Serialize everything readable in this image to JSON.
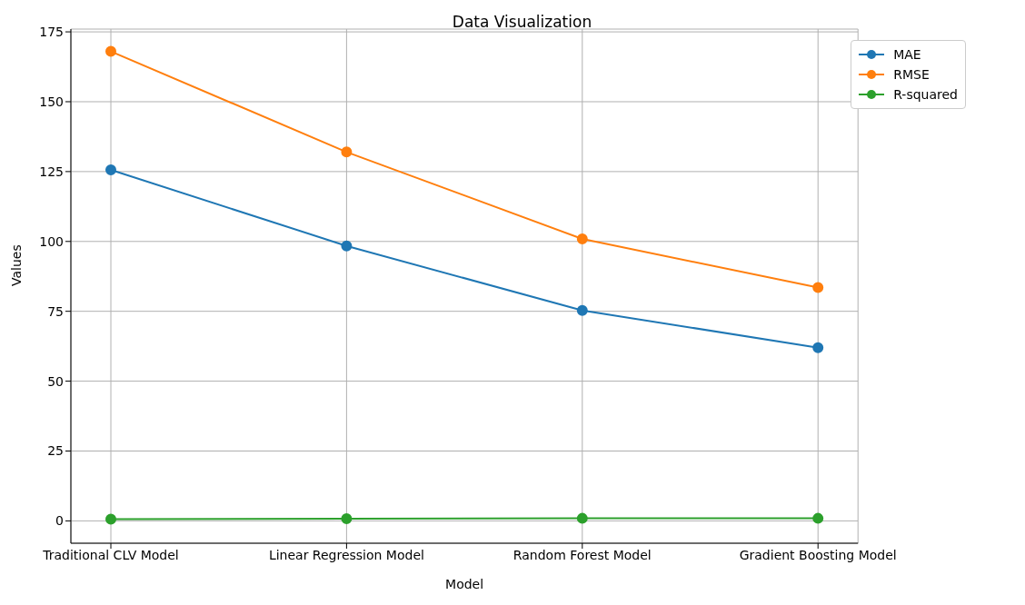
{
  "chart_data": {
    "type": "line",
    "title": "Data Visualization",
    "xlabel": "Model",
    "ylabel": "Values",
    "categories": [
      "Traditional CLV Model",
      "Linear Regression Model",
      "Random Forest Model",
      "Gradient Boosting Model"
    ],
    "series": [
      {
        "name": "MAE",
        "color": "#1f77b4",
        "values": [
          125.6,
          98.4,
          75.3,
          62.0
        ]
      },
      {
        "name": "RMSE",
        "color": "#ff7f0e",
        "values": [
          168.0,
          132.0,
          100.9,
          83.5
        ]
      },
      {
        "name": "R-squared",
        "color": "#2ca02c",
        "values": [
          0.6,
          0.8,
          0.9,
          0.9
        ]
      }
    ],
    "ylim": [
      -8,
      176
    ],
    "yticks": [
      0,
      25,
      50,
      75,
      100,
      125,
      150,
      175
    ],
    "grid": true,
    "legend": "top right",
    "marker": "circle",
    "line_style": "solid"
  }
}
